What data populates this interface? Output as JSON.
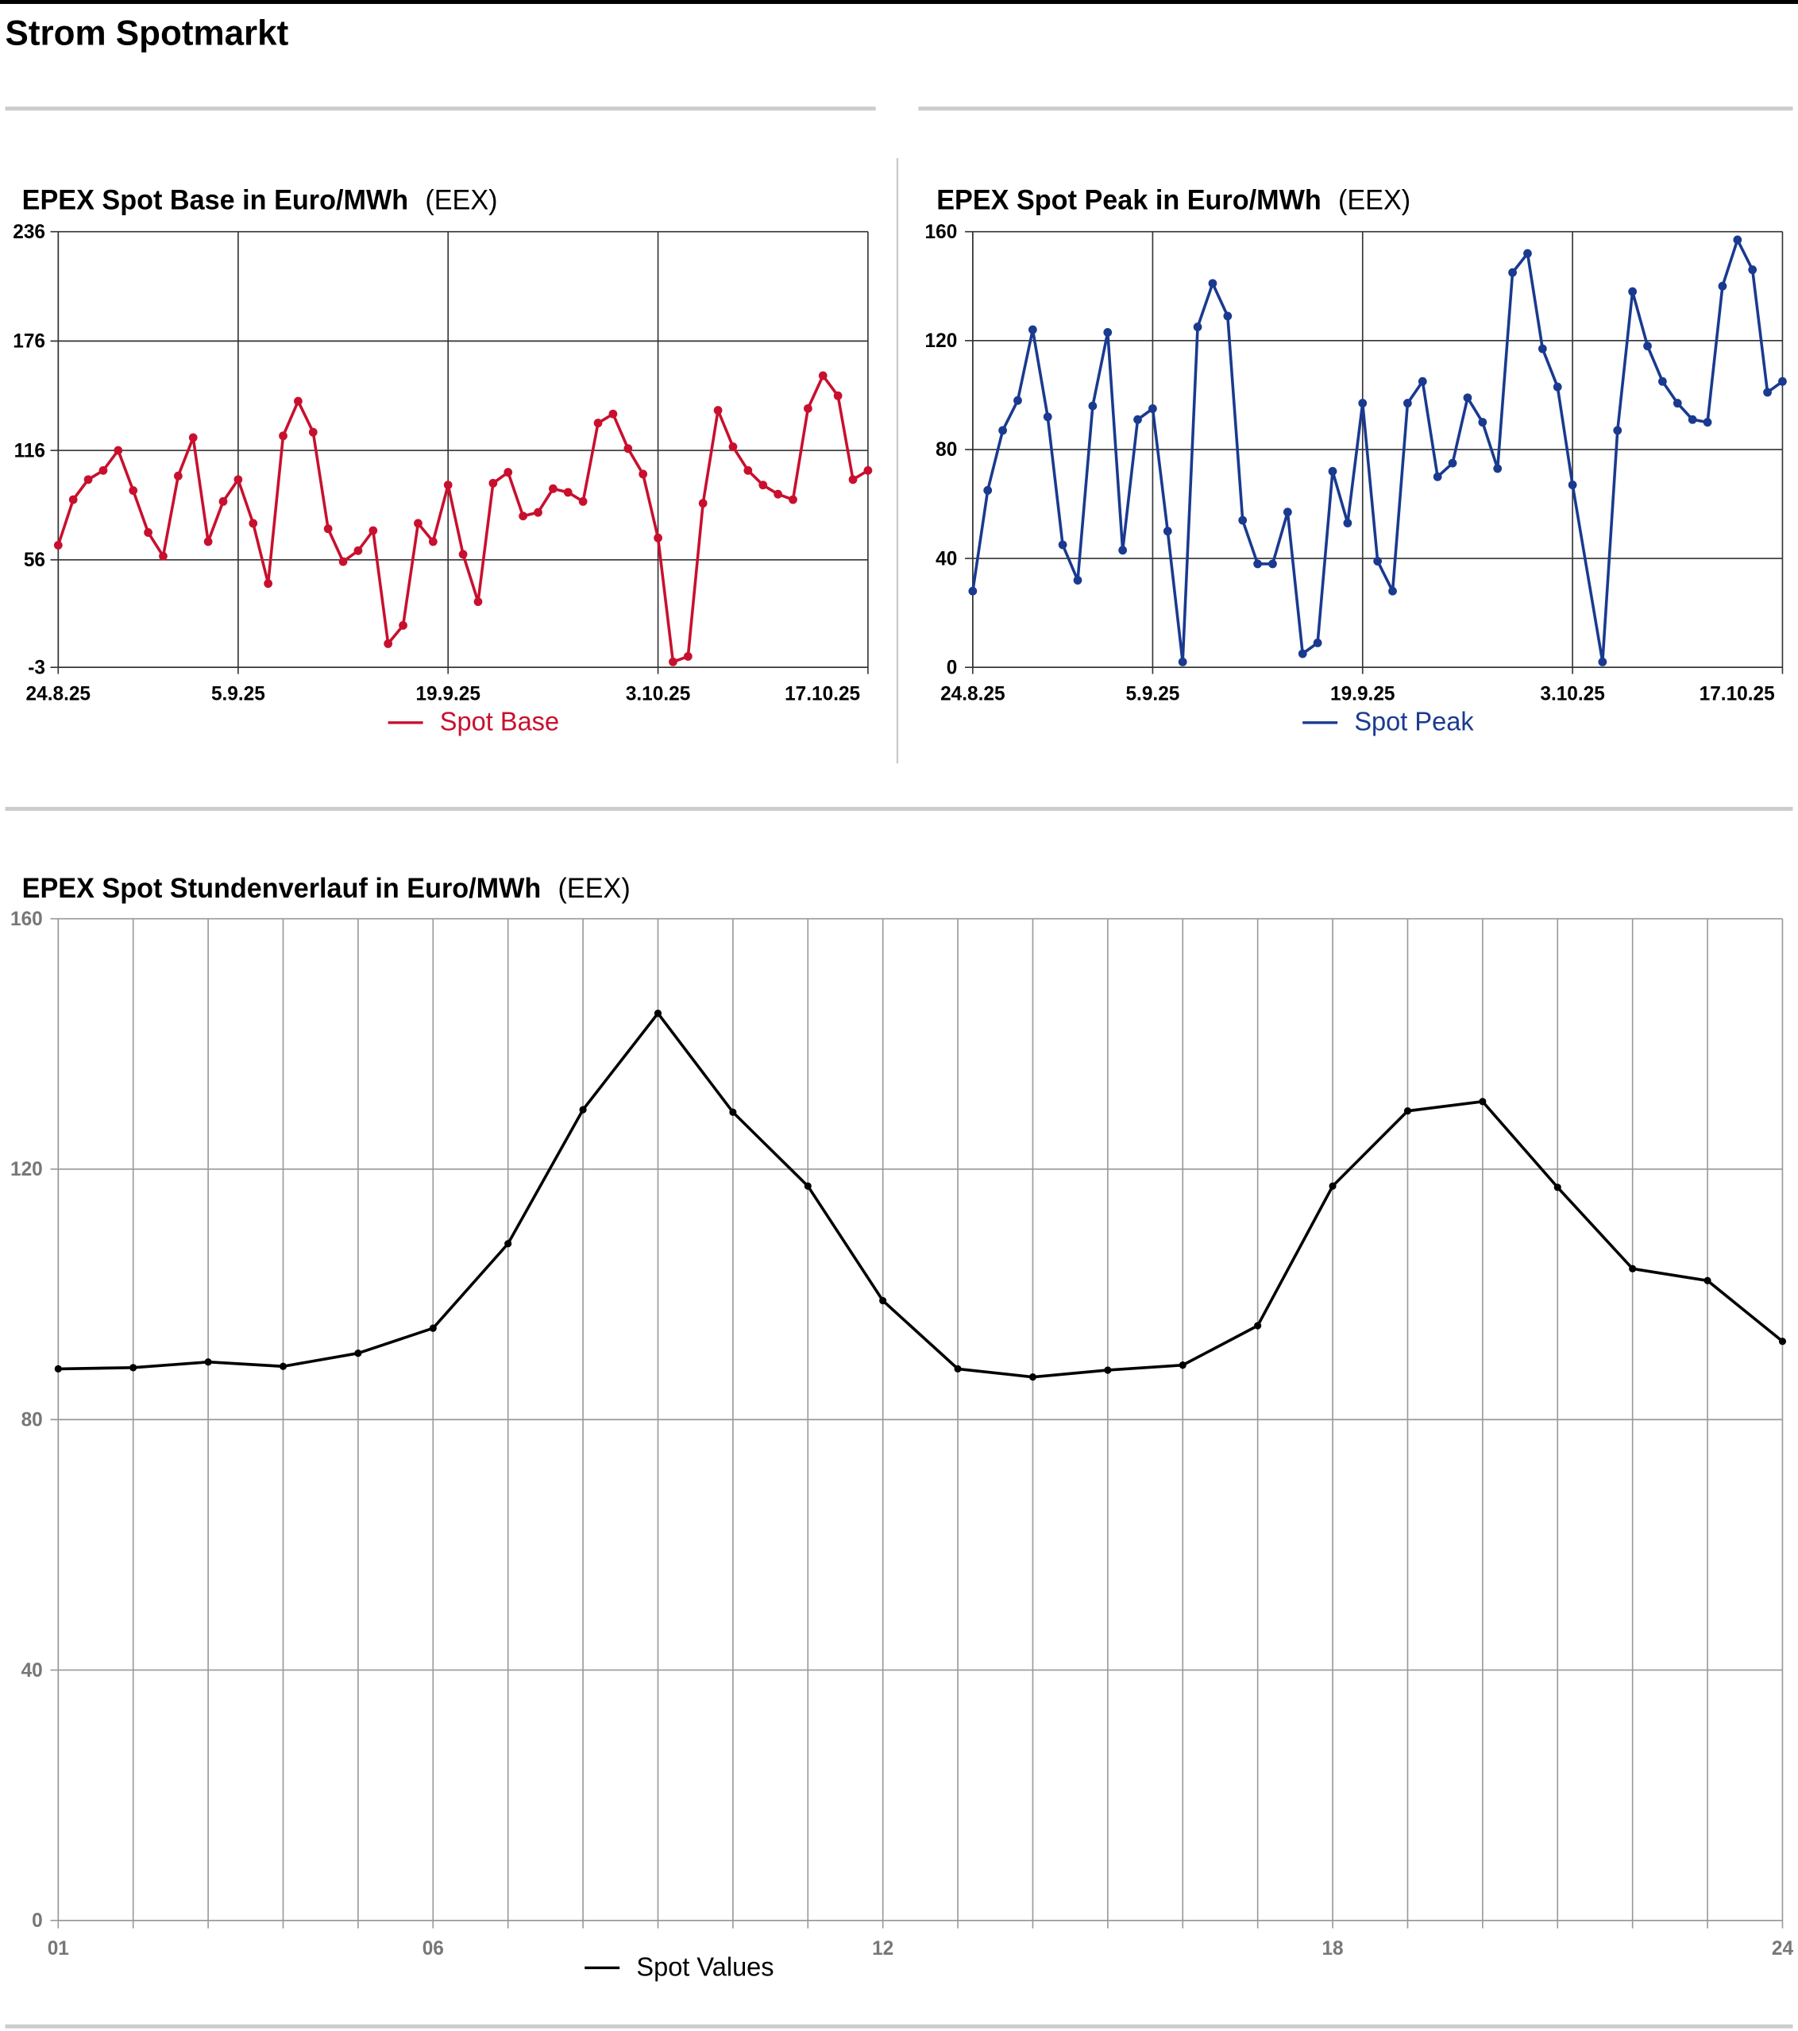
{
  "header": {
    "title": "Strom Spotmarkt"
  },
  "chart_data": [
    {
      "type": "line",
      "title": "EPEX Spot Base in Euro/MWh",
      "source": "(EEX)",
      "x": [
        "24.8.25",
        "25.8.25",
        "26.8.25",
        "27.8.25",
        "28.8.25",
        "29.8.25",
        "30.8.25",
        "31.8.25",
        "1.9.25",
        "2.9.25",
        "3.9.25",
        "4.9.25",
        "5.9.25",
        "6.9.25",
        "7.9.25",
        "8.9.25",
        "9.9.25",
        "10.9.25",
        "11.9.25",
        "12.9.25",
        "13.9.25",
        "14.9.25",
        "15.9.25",
        "16.9.25",
        "17.9.25",
        "18.9.25",
        "19.9.25",
        "20.9.25",
        "21.9.25",
        "22.9.25",
        "23.9.25",
        "24.9.25",
        "25.9.25",
        "26.9.25",
        "27.9.25",
        "28.9.25",
        "29.9.25",
        "30.9.25",
        "1.10.25",
        "2.10.25",
        "3.10.25",
        "4.10.25",
        "5.10.25",
        "6.10.25",
        "7.10.25",
        "8.10.25",
        "9.10.25",
        "10.10.25",
        "11.10.25",
        "12.10.25",
        "13.10.25",
        "14.10.25",
        "15.10.25",
        "16.10.25",
        "17.10.25"
      ],
      "series": [
        {
          "name": "Spot Base",
          "color": "#c8102e",
          "values": [
            64,
            89,
            100,
            105,
            116,
            94,
            71,
            58,
            102,
            123,
            66,
            88,
            100,
            76,
            43,
            124,
            143,
            126,
            73,
            55,
            61,
            72,
            10,
            20,
            76,
            66,
            97,
            59,
            33,
            98,
            104,
            80,
            82,
            95,
            93,
            88,
            131,
            136,
            117,
            103,
            68,
            0,
            3,
            87,
            138,
            118,
            105,
            97,
            92,
            89,
            139,
            157,
            146,
            100,
            105
          ]
        }
      ],
      "xlim": [
        "24.8.25",
        "17.10.25"
      ],
      "xticks": [
        "24.8.25",
        "5.9.25",
        "19.9.25",
        "3.10.25",
        "17.10.25"
      ],
      "ylim": [
        -3,
        236
      ],
      "yticks": [
        -3,
        56,
        116,
        176,
        236
      ],
      "grid": true
    },
    {
      "type": "line",
      "title": "EPEX Spot Peak in Euro/MWh",
      "source": "(EEX)",
      "x": [
        "24.8.25",
        "25.8.25",
        "26.8.25",
        "27.8.25",
        "28.8.25",
        "29.8.25",
        "30.8.25",
        "31.8.25",
        "1.9.25",
        "2.9.25",
        "3.9.25",
        "4.9.25",
        "5.9.25",
        "6.9.25",
        "7.9.25",
        "8.9.25",
        "9.9.25",
        "10.9.25",
        "11.9.25",
        "12.9.25",
        "13.9.25",
        "14.9.25",
        "15.9.25",
        "16.9.25",
        "17.9.25",
        "18.9.25",
        "19.9.25",
        "20.9.25",
        "21.9.25",
        "22.9.25",
        "23.9.25",
        "24.9.25",
        "25.9.25",
        "26.9.25",
        "27.9.25",
        "28.9.25",
        "29.9.25",
        "30.9.25",
        "1.10.25",
        "2.10.25",
        "3.10.25",
        "5.10.25",
        "6.10.25",
        "7.10.25",
        "8.10.25",
        "9.10.25",
        "10.10.25",
        "11.10.25",
        "12.10.25",
        "13.10.25",
        "14.10.25",
        "15.10.25",
        "16.10.25",
        "17.10.25"
      ],
      "series": [
        {
          "name": "Spot Peak",
          "color": "#1a3a8f",
          "values": [
            28,
            65,
            87,
            98,
            124,
            92,
            45,
            32,
            96,
            123,
            43,
            91,
            95,
            50,
            2,
            125,
            141,
            129,
            54,
            38,
            38,
            57,
            5,
            9,
            72,
            53,
            97,
            39,
            28,
            97,
            105,
            70,
            75,
            99,
            90,
            73,
            145,
            152,
            117,
            103,
            67,
            2,
            87,
            138,
            118,
            105,
            97,
            91,
            90,
            140,
            157,
            146,
            101,
            105
          ]
        }
      ],
      "xlim": [
        "24.8.25",
        "17.10.25"
      ],
      "xticks": [
        "24.8.25",
        "5.9.25",
        "19.9.25",
        "3.10.25",
        "17.10.25"
      ],
      "ylim": [
        0,
        160
      ],
      "yticks": [
        0,
        40,
        80,
        120,
        160
      ],
      "grid": true
    },
    {
      "type": "line",
      "title": "EPEX Spot Stundenverlauf in Euro/MWh",
      "source": "(EEX)",
      "categories": [
        "01",
        null,
        null,
        null,
        null,
        "06",
        null,
        null,
        null,
        null,
        null,
        "12",
        null,
        null,
        null,
        null,
        null,
        "18",
        null,
        null,
        null,
        null,
        null,
        "24"
      ],
      "series": [
        {
          "name": "Spot Values",
          "color": "#000000",
          "values": [
            88.1,
            88.3,
            89.2,
            88.5,
            90.6,
            94.6,
            108.1,
            129.5,
            144.9,
            129.1,
            117.3,
            99.0,
            88.1,
            86.8,
            87.9,
            88.7,
            95.0,
            117.3,
            129.3,
            130.8,
            117.1,
            104.1,
            102.2,
            92.5
          ]
        }
      ],
      "ylim": [
        0,
        160
      ],
      "yticks": [
        0,
        40,
        80,
        120,
        160
      ],
      "grid": true
    }
  ]
}
